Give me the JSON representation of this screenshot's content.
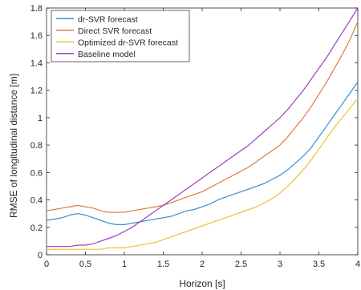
{
  "chart_data": {
    "type": "line",
    "xlabel": "Horizon [s]",
    "ylabel": "RMSE of longitudinal distance [m]",
    "xlim": [
      0,
      4
    ],
    "ylim": [
      0,
      1.8
    ],
    "x_ticks": [
      "0",
      "0.5",
      "1",
      "1.5",
      "2",
      "2.5",
      "3",
      "3.5",
      "4"
    ],
    "y_ticks": [
      "0",
      "0.2",
      "0.4",
      "0.6",
      "0.8",
      "1",
      "1.2",
      "1.4",
      "1.6",
      "1.8"
    ],
    "grid": false,
    "legend_position": "top-left",
    "series": [
      {
        "name": "dr-SVR forecast",
        "color": "#3a8fd1",
        "x": [
          0,
          0.1,
          0.2,
          0.3,
          0.4,
          0.5,
          0.6,
          0.7,
          0.8,
          0.9,
          1.0,
          1.1,
          1.2,
          1.3,
          1.4,
          1.5,
          1.6,
          1.7,
          1.8,
          1.9,
          2.0,
          2.1,
          2.2,
          2.3,
          2.4,
          2.5,
          2.6,
          2.7,
          2.8,
          2.9,
          3.0,
          3.1,
          3.2,
          3.3,
          3.4,
          3.5,
          3.6,
          3.7,
          3.8,
          3.9,
          4.0
        ],
        "values": [
          0.25,
          0.26,
          0.27,
          0.29,
          0.3,
          0.29,
          0.27,
          0.25,
          0.23,
          0.22,
          0.22,
          0.23,
          0.24,
          0.25,
          0.26,
          0.27,
          0.28,
          0.3,
          0.32,
          0.33,
          0.35,
          0.37,
          0.4,
          0.42,
          0.44,
          0.46,
          0.48,
          0.5,
          0.52,
          0.55,
          0.58,
          0.62,
          0.67,
          0.72,
          0.78,
          0.86,
          0.94,
          1.02,
          1.1,
          1.18,
          1.26
        ]
      },
      {
        "name": "Direct SVR forecast",
        "color": "#e07a45",
        "x": [
          0,
          0.1,
          0.2,
          0.3,
          0.4,
          0.5,
          0.6,
          0.7,
          0.8,
          0.9,
          1.0,
          1.1,
          1.2,
          1.3,
          1.4,
          1.5,
          1.6,
          1.7,
          1.8,
          1.9,
          2.0,
          2.1,
          2.2,
          2.3,
          2.4,
          2.5,
          2.6,
          2.7,
          2.8,
          2.9,
          3.0,
          3.1,
          3.2,
          3.3,
          3.4,
          3.5,
          3.6,
          3.7,
          3.8,
          3.9,
          4.0
        ],
        "values": [
          0.32,
          0.33,
          0.34,
          0.35,
          0.36,
          0.35,
          0.34,
          0.32,
          0.31,
          0.31,
          0.31,
          0.32,
          0.33,
          0.34,
          0.35,
          0.36,
          0.38,
          0.4,
          0.42,
          0.44,
          0.46,
          0.49,
          0.52,
          0.55,
          0.58,
          0.61,
          0.64,
          0.68,
          0.72,
          0.76,
          0.8,
          0.86,
          0.93,
          1.0,
          1.08,
          1.17,
          1.26,
          1.36,
          1.46,
          1.57,
          1.7
        ]
      },
      {
        "name": "Optimized dr-SVR forecast",
        "color": "#edc03a",
        "x": [
          0,
          0.1,
          0.2,
          0.3,
          0.4,
          0.5,
          0.6,
          0.7,
          0.8,
          0.9,
          1.0,
          1.1,
          1.2,
          1.3,
          1.4,
          1.5,
          1.6,
          1.7,
          1.8,
          1.9,
          2.0,
          2.1,
          2.2,
          2.3,
          2.4,
          2.5,
          2.6,
          2.7,
          2.8,
          2.9,
          3.0,
          3.1,
          3.2,
          3.3,
          3.4,
          3.5,
          3.6,
          3.7,
          3.8,
          3.9,
          4.0
        ],
        "values": [
          0.04,
          0.04,
          0.04,
          0.04,
          0.04,
          0.04,
          0.04,
          0.04,
          0.05,
          0.05,
          0.05,
          0.06,
          0.07,
          0.08,
          0.09,
          0.11,
          0.13,
          0.15,
          0.17,
          0.19,
          0.21,
          0.23,
          0.25,
          0.27,
          0.29,
          0.31,
          0.33,
          0.35,
          0.38,
          0.41,
          0.45,
          0.5,
          0.56,
          0.62,
          0.69,
          0.77,
          0.85,
          0.93,
          1.0,
          1.07,
          1.14
        ]
      },
      {
        "name": "Baseline model",
        "color": "#a040b8",
        "x": [
          0,
          0.1,
          0.2,
          0.3,
          0.4,
          0.5,
          0.6,
          0.7,
          0.8,
          0.9,
          1.0,
          1.1,
          1.2,
          1.3,
          1.4,
          1.5,
          1.6,
          1.7,
          1.8,
          1.9,
          2.0,
          2.1,
          2.2,
          2.3,
          2.4,
          2.5,
          2.6,
          2.7,
          2.8,
          2.9,
          3.0,
          3.1,
          3.2,
          3.3,
          3.4,
          3.5,
          3.6,
          3.7,
          3.8,
          3.9,
          4.0
        ],
        "values": [
          0.06,
          0.06,
          0.06,
          0.06,
          0.07,
          0.07,
          0.08,
          0.1,
          0.12,
          0.14,
          0.17,
          0.2,
          0.24,
          0.28,
          0.32,
          0.36,
          0.4,
          0.44,
          0.48,
          0.52,
          0.56,
          0.6,
          0.64,
          0.68,
          0.72,
          0.76,
          0.8,
          0.85,
          0.9,
          0.95,
          1.0,
          1.06,
          1.13,
          1.2,
          1.28,
          1.36,
          1.44,
          1.53,
          1.62,
          1.71,
          1.8
        ]
      }
    ]
  }
}
